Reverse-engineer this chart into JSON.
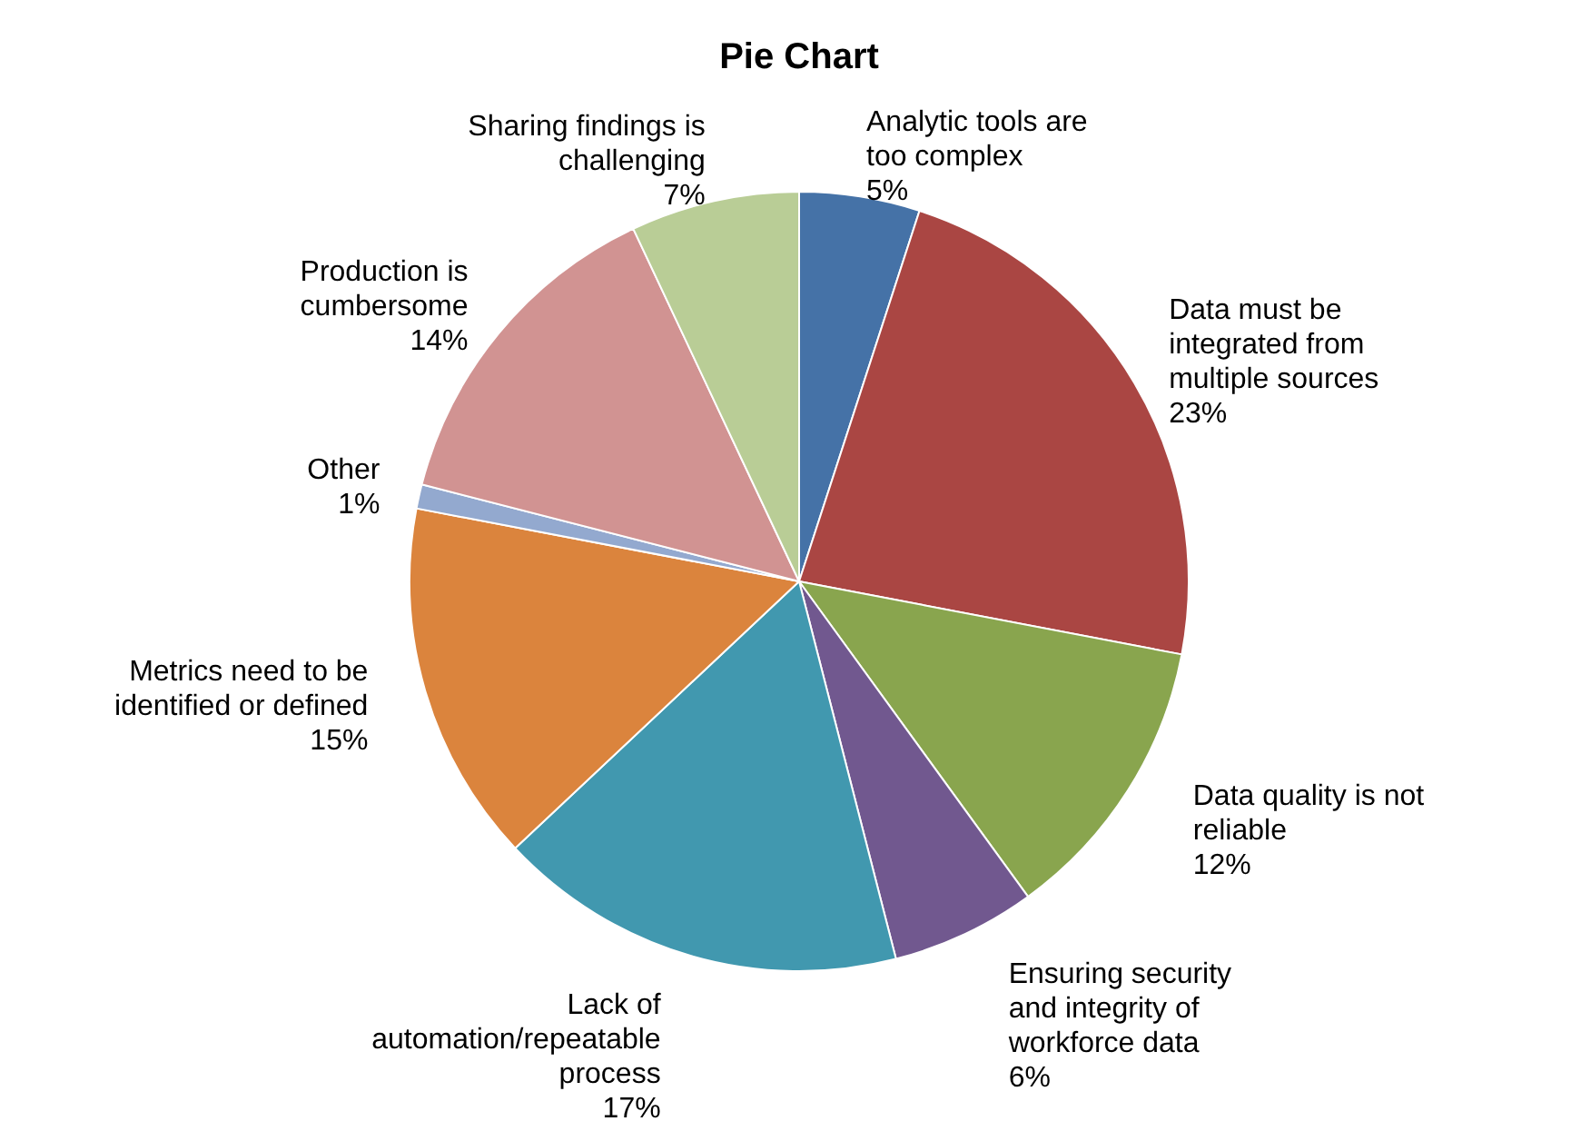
{
  "chart_data": {
    "type": "pie",
    "title": "Pie Chart",
    "categories": [
      "Analytic tools are too complex",
      "Data must be integrated from multiple sources",
      "Data quality is not reliable",
      "Ensuring security and integrity of workforce data",
      "Lack of automation/repeatable process",
      "Metrics need to be identified or defined",
      "Other",
      "Production is cumbersome",
      "Sharing findings is challenging"
    ],
    "values": [
      5,
      23,
      12,
      6,
      17,
      15,
      1,
      14,
      7
    ],
    "value_labels": [
      "5%",
      "23%",
      "12%",
      "6%",
      "17%",
      "15%",
      "1%",
      "14%",
      "7%"
    ],
    "colors": [
      "#4572a7",
      "#aa4643",
      "#89a54e",
      "#71588f",
      "#4198af",
      "#db843d",
      "#93a9cf",
      "#d19392",
      "#b9cd96"
    ],
    "legend": false
  }
}
